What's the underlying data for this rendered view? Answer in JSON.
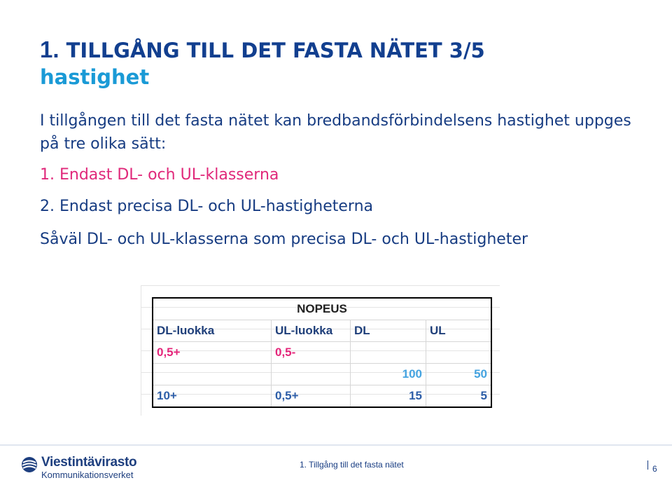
{
  "title": {
    "number": "1.",
    "main": "TILLGÅNG TILL DET FASTA NÄTET 3/5",
    "sub": "hastighet"
  },
  "intro": "I tillgången till det fasta nätet kan bredbandsförbindelsens hastighet uppges på tre olika sätt:",
  "list": [
    "1. Endast DL- och UL-klasserna",
    "2. Endast precisa DL- och UL-hastigheterna"
  ],
  "both": "Såväl DL- och UL-klasserna som precisa DL- och UL-hastigheter",
  "table": {
    "header": "NOPEUS",
    "columns": [
      "DL-luokka",
      "UL-luokka",
      "DL",
      "UL"
    ],
    "rows": [
      [
        "0,5+",
        "0,5-",
        "",
        ""
      ],
      [
        "",
        "",
        "100",
        "50"
      ],
      [
        "10+",
        "0,5+",
        "15",
        "5"
      ]
    ]
  },
  "footer": {
    "logo_name": "Viestintävirasto",
    "logo_sub": "Kommunikationsverket",
    "section": "1. Tillgång till det fasta nätet",
    "page": "6"
  },
  "colors": {
    "title_dark": "#123f8f",
    "title_light": "#1a9ad6",
    "body": "#173c82",
    "accent_pink": "#e0287a"
  }
}
